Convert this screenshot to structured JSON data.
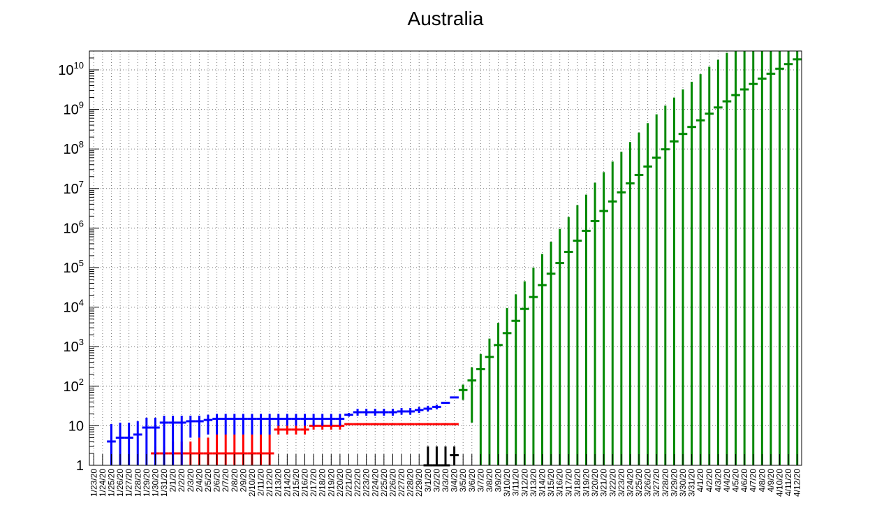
{
  "chart_data": {
    "type": "scatter",
    "title": "Australia",
    "xlabel": "",
    "ylabel": "",
    "yscale": "log",
    "ylim": [
      1,
      30000000000
    ],
    "grid": true,
    "legend": "none",
    "y_tick_labels": [
      {
        "value": 1,
        "base": "1",
        "exp": ""
      },
      {
        "value": 10,
        "base": "10",
        "exp": ""
      },
      {
        "value": 100,
        "base": "10",
        "exp": "2"
      },
      {
        "value": 1000,
        "base": "10",
        "exp": "3"
      },
      {
        "value": 10000,
        "base": "10",
        "exp": "4"
      },
      {
        "value": 100000,
        "base": "10",
        "exp": "5"
      },
      {
        "value": 1000000,
        "base": "10",
        "exp": "6"
      },
      {
        "value": 10000000,
        "base": "10",
        "exp": "7"
      },
      {
        "value": 100000000,
        "base": "10",
        "exp": "8"
      },
      {
        "value": 1000000000,
        "base": "10",
        "exp": "9"
      },
      {
        "value": 10000000000,
        "base": "10",
        "exp": "10"
      }
    ],
    "categories": [
      "1/23/20",
      "1/24/20",
      "1/25/20",
      "1/26/20",
      "1/27/20",
      "1/28/20",
      "1/29/20",
      "1/30/20",
      "1/31/20",
      "2/1/20",
      "2/2/20",
      "2/3/20",
      "2/4/20",
      "2/5/20",
      "2/6/20",
      "2/7/20",
      "2/8/20",
      "2/9/20",
      "2/10/20",
      "2/11/20",
      "2/12/20",
      "2/13/20",
      "2/14/20",
      "2/15/20",
      "2/16/20",
      "2/17/20",
      "2/18/20",
      "2/19/20",
      "2/20/20",
      "2/21/20",
      "2/22/20",
      "2/23/20",
      "2/24/20",
      "2/25/20",
      "2/26/20",
      "2/27/20",
      "2/28/20",
      "2/29/20",
      "3/1/20",
      "3/2/20",
      "3/3/20",
      "3/4/20",
      "3/5/20",
      "3/6/20",
      "3/7/20",
      "3/8/20",
      "3/9/20",
      "3/10/20",
      "3/11/20",
      "3/12/20",
      "3/13/20",
      "3/14/20",
      "3/15/20",
      "3/16/20",
      "3/17/20",
      "3/18/20",
      "3/19/20",
      "3/20/20",
      "3/21/20",
      "3/22/20",
      "3/23/20",
      "3/24/20",
      "3/25/20",
      "3/26/20",
      "3/27/20",
      "3/28/20",
      "3/29/20",
      "3/30/20",
      "3/31/20",
      "4/1/20",
      "4/2/20",
      "4/3/20",
      "4/4/20",
      "4/5/20",
      "4/6/20",
      "4/7/20",
      "4/8/20",
      "4/9/20",
      "4/10/20",
      "4/11/20",
      "4/12/20"
    ],
    "series": [
      {
        "color": "#ff0000",
        "points": [
          {
            "x": "1/30/20",
            "y": 2,
            "lo": 1,
            "hi": 3
          },
          {
            "x": "1/31/20",
            "y": 2,
            "lo": 1,
            "hi": 3
          },
          {
            "x": "2/1/20",
            "y": 2,
            "lo": 1,
            "hi": 4
          },
          {
            "x": "2/2/20",
            "y": 2,
            "lo": 1,
            "hi": 4
          },
          {
            "x": "2/3/20",
            "y": 2,
            "lo": 1,
            "hi": 4
          },
          {
            "x": "2/4/20",
            "y": 2,
            "lo": 1,
            "hi": 5
          },
          {
            "x": "2/5/20",
            "y": 2,
            "lo": 1,
            "hi": 5
          },
          {
            "x": "2/6/20",
            "y": 2,
            "lo": 1,
            "hi": 6
          },
          {
            "x": "2/7/20",
            "y": 2,
            "lo": 1,
            "hi": 6
          },
          {
            "x": "2/8/20",
            "y": 2,
            "lo": 1,
            "hi": 6
          },
          {
            "x": "2/9/20",
            "y": 2,
            "lo": 1,
            "hi": 6
          },
          {
            "x": "2/10/20",
            "y": 2,
            "lo": 1,
            "hi": 6
          },
          {
            "x": "2/11/20",
            "y": 2,
            "lo": 1,
            "hi": 6
          },
          {
            "x": "2/12/20",
            "y": 2,
            "lo": 1,
            "hi": 6
          },
          {
            "x": "2/13/20",
            "y": 8,
            "lo": 6,
            "hi": 10
          },
          {
            "x": "2/14/20",
            "y": 8,
            "lo": 6,
            "hi": 10
          },
          {
            "x": "2/15/20",
            "y": 8,
            "lo": 6,
            "hi": 10
          },
          {
            "x": "2/16/20",
            "y": 8,
            "lo": 6,
            "hi": 10
          },
          {
            "x": "2/17/20",
            "y": 10,
            "lo": 8,
            "hi": 12
          },
          {
            "x": "2/18/20",
            "y": 10,
            "lo": 8,
            "hi": 12
          },
          {
            "x": "2/19/20",
            "y": 10,
            "lo": 8,
            "hi": 12
          },
          {
            "x": "2/20/20",
            "y": 10,
            "lo": 8,
            "hi": 12
          },
          {
            "x": "2/21/20",
            "y": 11,
            "lo": 10.5,
            "hi": 11.5
          },
          {
            "x": "2/22/20",
            "y": 11,
            "lo": 10.5,
            "hi": 11.5
          },
          {
            "x": "2/23/20",
            "y": 11,
            "lo": 10.5,
            "hi": 11.5
          },
          {
            "x": "2/24/20",
            "y": 11,
            "lo": 10.5,
            "hi": 11.5
          },
          {
            "x": "2/25/20",
            "y": 11,
            "lo": 10.5,
            "hi": 11.5
          },
          {
            "x": "2/26/20",
            "y": 11,
            "lo": 10.5,
            "hi": 11.5
          },
          {
            "x": "2/27/20",
            "y": 11,
            "lo": 10.5,
            "hi": 11.5
          },
          {
            "x": "2/28/20",
            "y": 11,
            "lo": 10.5,
            "hi": 11.5
          },
          {
            "x": "2/29/20",
            "y": 11,
            "lo": 10.5,
            "hi": 11.5
          },
          {
            "x": "3/1/20",
            "y": 11,
            "lo": 10.5,
            "hi": 11.5
          },
          {
            "x": "3/2/20",
            "y": 11,
            "lo": 10.5,
            "hi": 11.5
          },
          {
            "x": "3/3/20",
            "y": 11,
            "lo": 10.5,
            "hi": 11.5
          },
          {
            "x": "3/4/20",
            "y": 11,
            "lo": 10.5,
            "hi": 11.5
          }
        ]
      },
      {
        "color": "#0000ff",
        "points": [
          {
            "x": "1/25/20",
            "y": 4,
            "lo": 1,
            "hi": 11
          },
          {
            "x": "1/26/20",
            "y": 5,
            "lo": 1,
            "hi": 12
          },
          {
            "x": "1/27/20",
            "y": 5,
            "lo": 1,
            "hi": 12
          },
          {
            "x": "1/28/20",
            "y": 6,
            "lo": 1,
            "hi": 13
          },
          {
            "x": "1/29/20",
            "y": 9,
            "lo": 1,
            "hi": 16
          },
          {
            "x": "1/30/20",
            "y": 9,
            "lo": 1,
            "hi": 16
          },
          {
            "x": "1/31/20",
            "y": 12,
            "lo": 1,
            "hi": 18
          },
          {
            "x": "2/1/20",
            "y": 12,
            "lo": 1,
            "hi": 18
          },
          {
            "x": "2/2/20",
            "y": 12,
            "lo": 1,
            "hi": 18
          },
          {
            "x": "2/3/20",
            "y": 13,
            "lo": 5,
            "hi": 18
          },
          {
            "x": "2/4/20",
            "y": 13,
            "lo": 5,
            "hi": 18
          },
          {
            "x": "2/5/20",
            "y": 14,
            "lo": 6,
            "hi": 19
          },
          {
            "x": "2/6/20",
            "y": 15,
            "lo": 6,
            "hi": 20
          },
          {
            "x": "2/7/20",
            "y": 15,
            "lo": 6,
            "hi": 20
          },
          {
            "x": "2/8/20",
            "y": 15,
            "lo": 6,
            "hi": 20
          },
          {
            "x": "2/9/20",
            "y": 15,
            "lo": 6,
            "hi": 20
          },
          {
            "x": "2/10/20",
            "y": 15,
            "lo": 6,
            "hi": 20
          },
          {
            "x": "2/11/20",
            "y": 15,
            "lo": 6,
            "hi": 20
          },
          {
            "x": "2/12/20",
            "y": 15,
            "lo": 6,
            "hi": 20
          },
          {
            "x": "2/13/20",
            "y": 15,
            "lo": 10,
            "hi": 20
          },
          {
            "x": "2/14/20",
            "y": 15,
            "lo": 10,
            "hi": 20
          },
          {
            "x": "2/15/20",
            "y": 15,
            "lo": 10,
            "hi": 20
          },
          {
            "x": "2/16/20",
            "y": 15,
            "lo": 10,
            "hi": 20
          },
          {
            "x": "2/17/20",
            "y": 15,
            "lo": 10,
            "hi": 20
          },
          {
            "x": "2/18/20",
            "y": 15,
            "lo": 10,
            "hi": 20
          },
          {
            "x": "2/19/20",
            "y": 15,
            "lo": 10,
            "hi": 20
          },
          {
            "x": "2/20/20",
            "y": 15,
            "lo": 10,
            "hi": 20
          },
          {
            "x": "2/21/20",
            "y": 19,
            "lo": 17,
            "hi": 21
          },
          {
            "x": "2/22/20",
            "y": 22,
            "lo": 18,
            "hi": 27
          },
          {
            "x": "2/23/20",
            "y": 22,
            "lo": 18,
            "hi": 27
          },
          {
            "x": "2/24/20",
            "y": 22,
            "lo": 18,
            "hi": 27
          },
          {
            "x": "2/25/20",
            "y": 22,
            "lo": 18,
            "hi": 27
          },
          {
            "x": "2/26/20",
            "y": 22,
            "lo": 18,
            "hi": 27
          },
          {
            "x": "2/27/20",
            "y": 23,
            "lo": 19,
            "hi": 28
          },
          {
            "x": "2/28/20",
            "y": 23,
            "lo": 19,
            "hi": 28
          },
          {
            "x": "2/29/20",
            "y": 25,
            "lo": 21,
            "hi": 30
          },
          {
            "x": "3/1/20",
            "y": 27,
            "lo": 23,
            "hi": 32
          },
          {
            "x": "3/2/20",
            "y": 30,
            "lo": 26,
            "hi": 34
          },
          {
            "x": "3/3/20",
            "y": 38,
            "lo": 36,
            "hi": 40
          },
          {
            "x": "3/4/20",
            "y": 52,
            "lo": 50,
            "hi": 54
          }
        ]
      },
      {
        "color": "#000000",
        "points": [
          {
            "x": "3/1/20",
            "y": 1,
            "lo": 1,
            "hi": 3
          },
          {
            "x": "3/2/20",
            "y": 1,
            "lo": 1,
            "hi": 3
          },
          {
            "x": "3/3/20",
            "y": 1,
            "lo": 1,
            "hi": 3
          },
          {
            "x": "3/4/20",
            "y": 1.8,
            "lo": 1,
            "hi": 3
          }
        ]
      },
      {
        "color": "#008800",
        "points": [
          {
            "x": "3/5/20",
            "y": 80,
            "lo": 45,
            "hi": 110
          },
          {
            "x": "3/6/20",
            "y": 140,
            "lo": 12,
            "hi": 300
          },
          {
            "x": "3/7/20",
            "y": 270,
            "lo": 1,
            "hi": 650
          },
          {
            "x": "3/8/20",
            "y": 550,
            "lo": 1,
            "hi": 1600
          },
          {
            "x": "3/9/20",
            "y": 1100,
            "lo": 1,
            "hi": 4000
          },
          {
            "x": "3/10/20",
            "y": 2200,
            "lo": 1,
            "hi": 9500
          },
          {
            "x": "3/11/20",
            "y": 4500,
            "lo": 1,
            "hi": 21000
          },
          {
            "x": "3/12/20",
            "y": 9000,
            "lo": 1,
            "hi": 45000
          },
          {
            "x": "3/13/20",
            "y": 18000,
            "lo": 1,
            "hi": 100000
          },
          {
            "x": "3/14/20",
            "y": 36000,
            "lo": 1,
            "hi": 220000
          },
          {
            "x": "3/15/20",
            "y": 70000,
            "lo": 1,
            "hi": 450000
          },
          {
            "x": "3/16/20",
            "y": 130000,
            "lo": 1,
            "hi": 950000
          },
          {
            "x": "3/17/20",
            "y": 250000,
            "lo": 1,
            "hi": 1900000
          },
          {
            "x": "3/18/20",
            "y": 480000,
            "lo": 1,
            "hi": 3800000
          },
          {
            "x": "3/19/20",
            "y": 850000,
            "lo": 1,
            "hi": 7000000
          },
          {
            "x": "3/20/20",
            "y": 1500000,
            "lo": 1,
            "hi": 14000000
          },
          {
            "x": "3/21/20",
            "y": 2700000,
            "lo": 1,
            "hi": 26000000
          },
          {
            "x": "3/22/20",
            "y": 4700000,
            "lo": 1,
            "hi": 48000000
          },
          {
            "x": "3/23/20",
            "y": 8000000,
            "lo": 1,
            "hi": 85000000
          },
          {
            "x": "3/24/20",
            "y": 13500000,
            "lo": 1,
            "hi": 150000000
          },
          {
            "x": "3/25/20",
            "y": 22000000,
            "lo": 1,
            "hi": 260000000
          },
          {
            "x": "3/26/20",
            "y": 36000000,
            "lo": 1,
            "hi": 450000000
          },
          {
            "x": "3/27/20",
            "y": 60000000,
            "lo": 1,
            "hi": 750000000
          },
          {
            "x": "3/28/20",
            "y": 98000000,
            "lo": 1,
            "hi": 1250000000
          },
          {
            "x": "3/29/20",
            "y": 155000000,
            "lo": 1,
            "hi": 2000000000
          },
          {
            "x": "3/30/20",
            "y": 240000000,
            "lo": 1,
            "hi": 3200000000
          },
          {
            "x": "3/31/20",
            "y": 360000000,
            "lo": 1,
            "hi": 5000000000
          },
          {
            "x": "4/1/20",
            "y": 530000000,
            "lo": 1,
            "hi": 7800000000
          },
          {
            "x": "4/2/20",
            "y": 780000000,
            "lo": 1,
            "hi": 12000000000
          },
          {
            "x": "4/3/20",
            "y": 1120000000,
            "lo": 1,
            "hi": 18000000000
          },
          {
            "x": "4/4/20",
            "y": 1600000000,
            "lo": 1,
            "hi": 27000000000
          },
          {
            "x": "4/5/20",
            "y": 2300000000,
            "lo": 1,
            "hi": 40000000000
          },
          {
            "x": "4/6/20",
            "y": 3200000000,
            "lo": 1,
            "hi": 60000000000
          },
          {
            "x": "4/7/20",
            "y": 4400000000,
            "lo": 1,
            "hi": 80000000000
          },
          {
            "x": "4/8/20",
            "y": 6000000000,
            "lo": 1,
            "hi": 100000000000
          },
          {
            "x": "4/9/20",
            "y": 8000000000,
            "lo": 1,
            "hi": 130000000000
          },
          {
            "x": "4/10/20",
            "y": 10700000000,
            "lo": 1,
            "hi": 160000000000
          },
          {
            "x": "4/11/20",
            "y": 14000000000,
            "lo": 1,
            "hi": 200000000000
          },
          {
            "x": "4/12/20",
            "y": 18500000000,
            "lo": 1,
            "hi": 250000000000
          }
        ]
      }
    ]
  }
}
